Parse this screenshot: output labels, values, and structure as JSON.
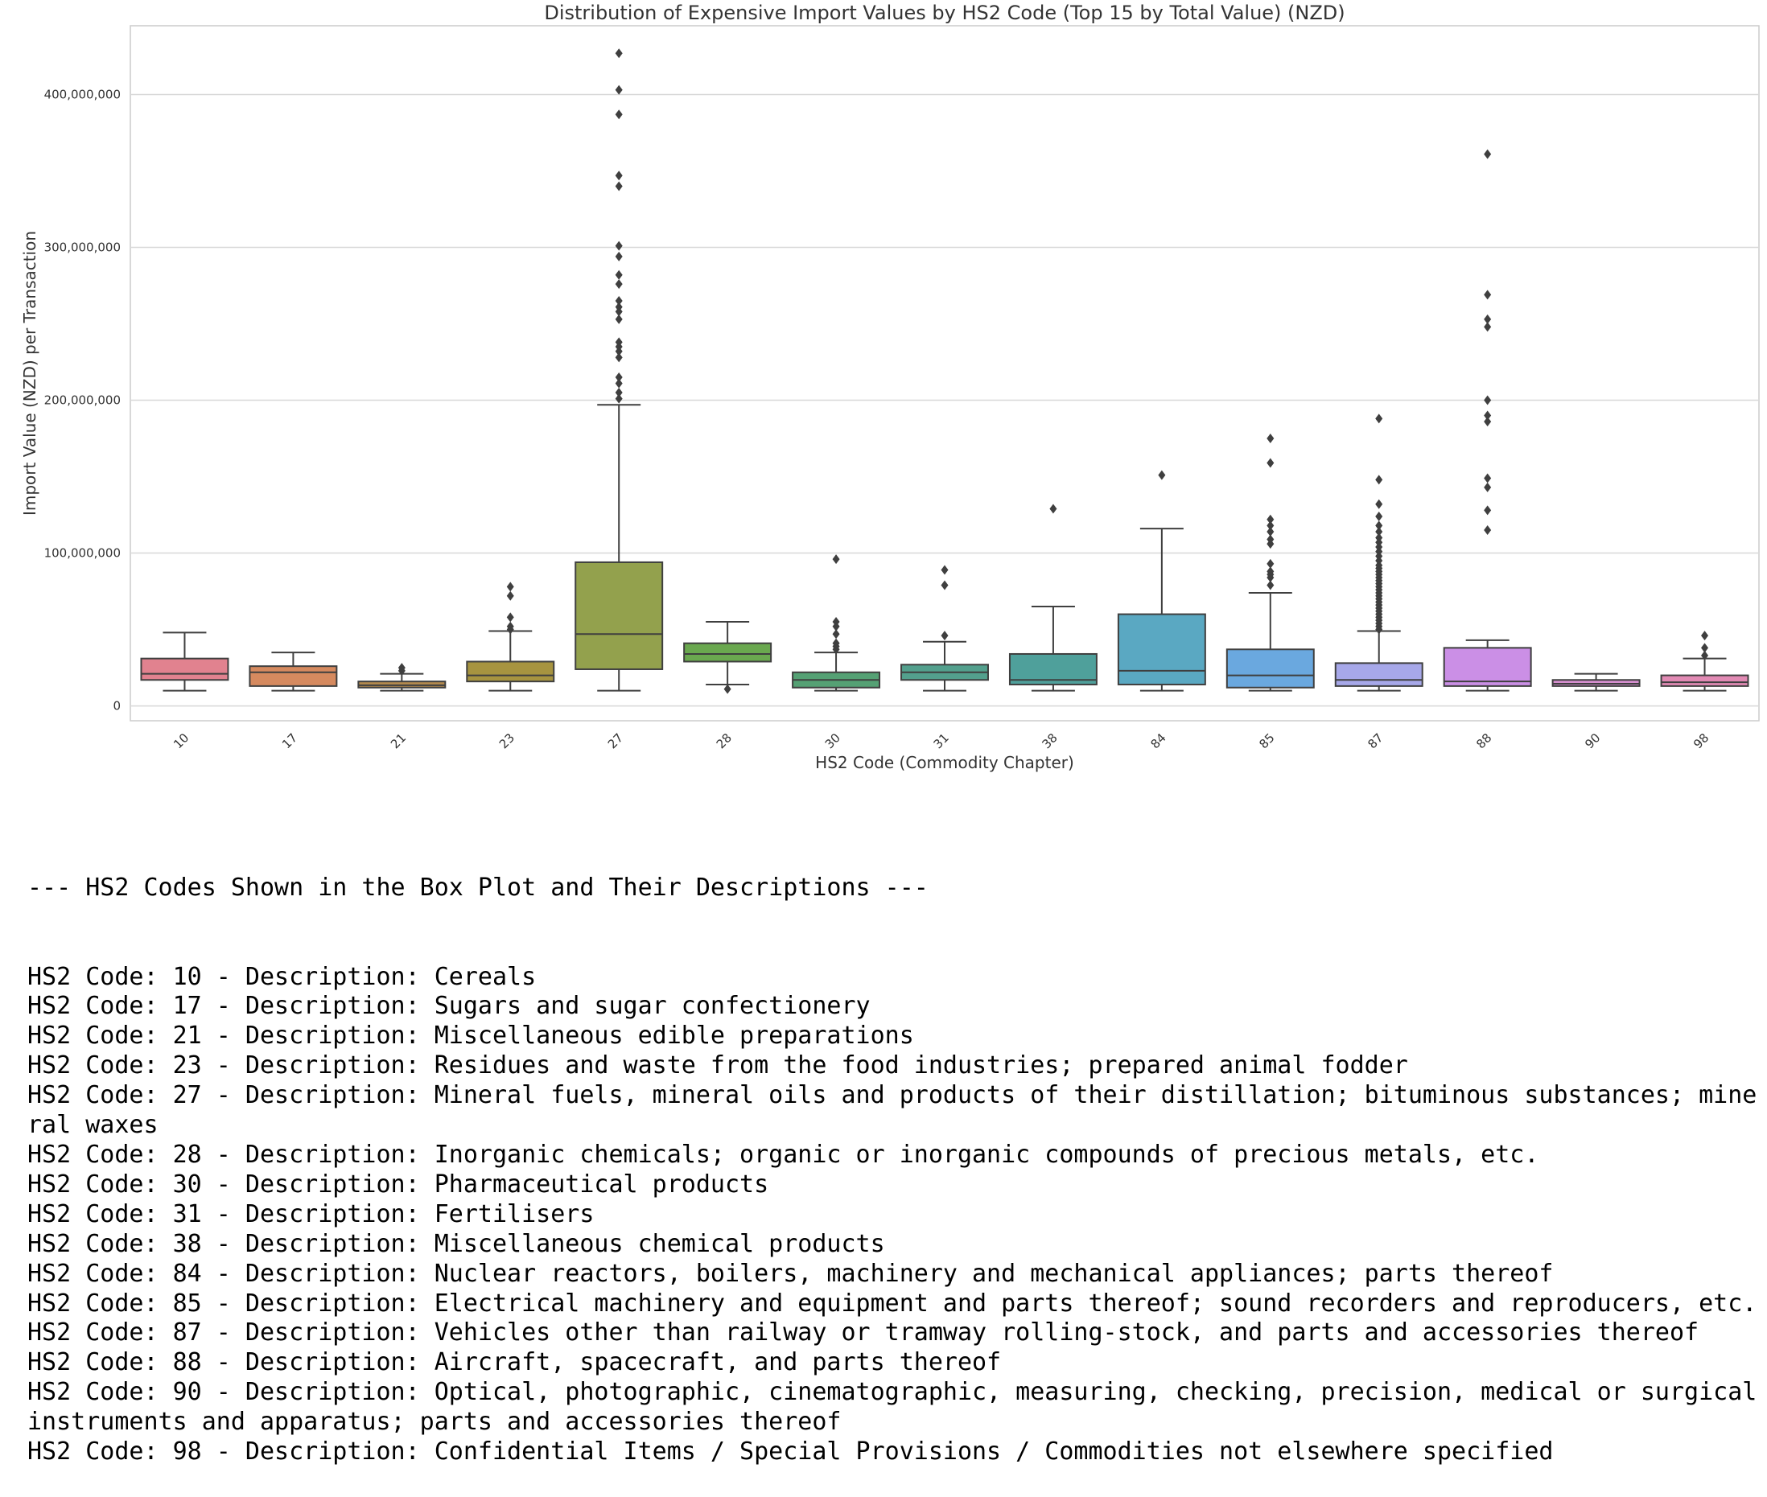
{
  "chart_data": {
    "type": "box",
    "title": "Distribution of Expensive Import Values by HS2 Code (Top 15 by Total Value) (NZD)",
    "xlabel": "HS2 Code (Commodity Chapter)",
    "ylabel": "Import Value (NZD) per Transaction",
    "ylim": [
      -9700000,
      445000000
    ],
    "yticks": [
      0,
      100000000,
      200000000,
      300000000,
      400000000
    ],
    "ytick_labels": [
      "0",
      "100,000,000",
      "200,000,000",
      "300,000,000",
      "400,000,000"
    ],
    "grid": "horizontal",
    "categories": [
      "10",
      "17",
      "21",
      "23",
      "27",
      "28",
      "30",
      "31",
      "38",
      "84",
      "85",
      "87",
      "88",
      "90",
      "98"
    ],
    "colors": [
      "#e1828f",
      "#d68a5f",
      "#b58b4e",
      "#a79440",
      "#93a14d",
      "#6aa84f",
      "#55a174",
      "#53a08d",
      "#4fa09b",
      "#5aa8c2",
      "#6aa8df",
      "#a7a8e9",
      "#cb8fe6",
      "#d68fcf",
      "#e28ab4"
    ],
    "boxes": [
      {
        "code": "10",
        "min": 10000000,
        "q1": 17000000,
        "median": 21000000,
        "q3": 31000000,
        "max": 48000000,
        "outliers": []
      },
      {
        "code": "17",
        "min": 10000000,
        "q1": 13000000,
        "median": 22000000,
        "q3": 26000000,
        "max": 35000000,
        "outliers": []
      },
      {
        "code": "21",
        "min": 10000000,
        "q1": 12000000,
        "median": 13500000,
        "q3": 16000000,
        "max": 21000000,
        "outliers": [
          23000000,
          25000000
        ]
      },
      {
        "code": "23",
        "min": 10000000,
        "q1": 16000000,
        "median": 20000000,
        "q3": 29000000,
        "max": 49000000,
        "outliers": [
          50000000,
          52000000,
          58000000,
          72000000,
          78000000
        ]
      },
      {
        "code": "27",
        "min": 10000000,
        "q1": 24000000,
        "median": 47000000,
        "q3": 94000000,
        "max": 197000000,
        "outliers": [
          201000000,
          205000000,
          211000000,
          215000000,
          228000000,
          232000000,
          235000000,
          238000000,
          253000000,
          258000000,
          261000000,
          265000000,
          276000000,
          282000000,
          294000000,
          301000000,
          340000000,
          347000000,
          387000000,
          403000000,
          427000000
        ]
      },
      {
        "code": "28",
        "min": 14000000,
        "q1": 29000000,
        "median": 34000000,
        "q3": 41000000,
        "max": 55000000,
        "outliers": [
          11000000
        ]
      },
      {
        "code": "30",
        "min": 10000000,
        "q1": 12000000,
        "median": 17000000,
        "q3": 22000000,
        "max": 35000000,
        "outliers": [
          37000000,
          39000000,
          41000000,
          47000000,
          52000000,
          55000000,
          96000000
        ]
      },
      {
        "code": "31",
        "min": 10000000,
        "q1": 17000000,
        "median": 22000000,
        "q3": 27000000,
        "max": 42000000,
        "outliers": [
          46000000,
          79000000,
          89000000
        ]
      },
      {
        "code": "38",
        "min": 10000000,
        "q1": 14000000,
        "median": 17000000,
        "q3": 34000000,
        "max": 65000000,
        "outliers": [
          129000000
        ]
      },
      {
        "code": "84",
        "min": 10000000,
        "q1": 14000000,
        "median": 23000000,
        "q3": 60000000,
        "max": 116000000,
        "outliers": [
          151000000
        ]
      },
      {
        "code": "85",
        "min": 10000000,
        "q1": 12000000,
        "median": 20000000,
        "q3": 37000000,
        "max": 74000000,
        "outliers": [
          79000000,
          84000000,
          86000000,
          88000000,
          93000000,
          106000000,
          109000000,
          114000000,
          118000000,
          122000000,
          159000000,
          175000000
        ]
      },
      {
        "code": "87",
        "min": 10000000,
        "q1": 13000000,
        "median": 17000000,
        "q3": 28000000,
        "max": 49000000,
        "outliers": [
          50000000,
          52000000,
          54000000,
          56000000,
          58000000,
          60000000,
          62000000,
          64000000,
          66000000,
          68000000,
          70000000,
          72000000,
          74000000,
          76000000,
          78000000,
          80000000,
          82000000,
          84000000,
          86000000,
          88000000,
          90000000,
          92000000,
          95000000,
          98000000,
          101000000,
          104000000,
          107000000,
          110000000,
          114000000,
          118000000,
          124000000,
          132000000,
          148000000,
          188000000
        ]
      },
      {
        "code": "88",
        "min": 10000000,
        "q1": 13000000,
        "median": 16000000,
        "q3": 38000000,
        "max": 43000000,
        "outliers": [
          115000000,
          128000000,
          143000000,
          149000000,
          186000000,
          190000000,
          200000000,
          248000000,
          253000000,
          269000000,
          361000000
        ]
      },
      {
        "code": "90",
        "min": 10000000,
        "q1": 13000000,
        "median": 14500000,
        "q3": 17000000,
        "max": 21000000,
        "outliers": []
      },
      {
        "code": "98",
        "min": 10000000,
        "q1": 13000000,
        "median": 15500000,
        "q3": 20000000,
        "max": 31000000,
        "outliers": [
          33000000,
          38000000,
          46000000
        ]
      }
    ]
  },
  "descriptions": {
    "heading": "--- HS2 Codes Shown in the Box Plot and Their Descriptions ---",
    "lines": [
      "HS2 Code: 10 - Description: Cereals",
      "HS2 Code: 17 - Description: Sugars and sugar confectionery",
      "HS2 Code: 21 - Description: Miscellaneous edible preparations",
      "HS2 Code: 23 - Description: Residues and waste from the food industries; prepared animal fodder",
      "HS2 Code: 27 - Description: Mineral fuels, mineral oils and products of their distillation; bituminous substances; mineral waxes",
      "HS2 Code: 28 - Description: Inorganic chemicals; organic or inorganic compounds of precious metals, etc.",
      "HS2 Code: 30 - Description: Pharmaceutical products",
      "HS2 Code: 31 - Description: Fertilisers",
      "HS2 Code: 38 - Description: Miscellaneous chemical products",
      "HS2 Code: 84 - Description: Nuclear reactors, boilers, machinery and mechanical appliances; parts thereof",
      "HS2 Code: 85 - Description: Electrical machinery and equipment and parts thereof; sound recorders and reproducers, etc.",
      "HS2 Code: 87 - Description: Vehicles other than railway or tramway rolling-stock, and parts and accessories thereof",
      "HS2 Code: 88 - Description: Aircraft, spacecraft, and parts thereof",
      "HS2 Code: 90 - Description: Optical, photographic, cinematographic, measuring, checking, precision, medical or surgical instruments and apparatus; parts and accessories thereof",
      "HS2 Code: 98 - Description: Confidential Items / Special Provisions / Commodities not elsewhere specified"
    ]
  }
}
